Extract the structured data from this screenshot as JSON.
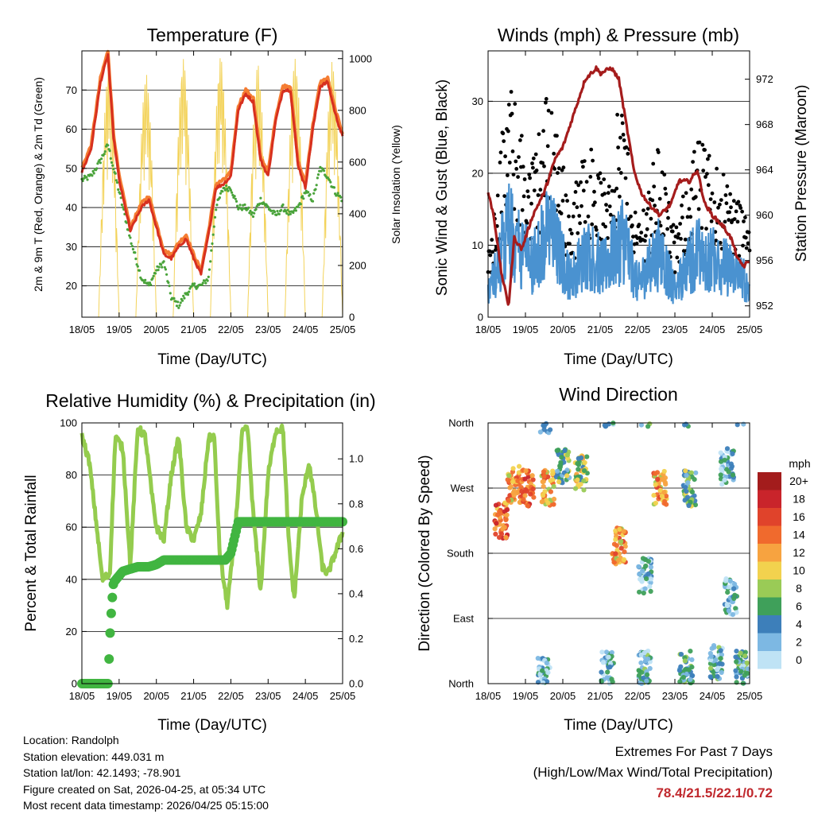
{
  "chart_data": [
    {
      "type": "line",
      "title": "Temperature (F)",
      "xlabel": "Time (Day/UTC)",
      "ylabel_left": "2m & 9m T (Red, Orange) & 2m Td (Green)",
      "ylabel_right": "Solar Insolation (Yellow)",
      "x_ticks": [
        "18/05",
        "19/05",
        "20/05",
        "21/05",
        "22/05",
        "23/05",
        "24/05",
        "25/05"
      ],
      "ylim": [
        12,
        80
      ],
      "y_ticks": [
        20,
        30,
        40,
        50,
        60,
        70
      ],
      "y2lim": [
        0,
        1030
      ],
      "y2_ticks": [
        0,
        200,
        400,
        600,
        800,
        1000
      ],
      "x_days": [
        0,
        0.25,
        0.5,
        0.7,
        0.85,
        1.0,
        1.3,
        1.6,
        1.8,
        2.0,
        2.2,
        2.4,
        2.6,
        2.8,
        3.0,
        3.2,
        3.4,
        3.6,
        3.8,
        4.0,
        4.2,
        4.4,
        4.6,
        4.8,
        5.0,
        5.2,
        5.4,
        5.6,
        5.8,
        6.0,
        6.2,
        6.4,
        6.6,
        6.8,
        7.0
      ],
      "series": [
        {
          "name": "2m T",
          "color": "#d7301f",
          "values": [
            49,
            55,
            72,
            79,
            58,
            47,
            34,
            40,
            42,
            35,
            28,
            27,
            30,
            32,
            27,
            23,
            33,
            45,
            46,
            48,
            65,
            69,
            67,
            52,
            48,
            62,
            70,
            70,
            51,
            45,
            60,
            71,
            72,
            64,
            58
          ]
        },
        {
          "name": "9m T",
          "color": "#f57d33",
          "values": [
            50,
            56,
            73,
            80,
            59,
            48,
            35,
            41,
            43,
            36,
            29,
            28,
            31,
            33,
            28,
            24,
            34,
            46,
            47,
            49,
            66,
            70,
            68,
            53,
            49,
            63,
            71,
            71,
            52,
            46,
            61,
            72,
            73,
            65,
            59
          ]
        },
        {
          "name": "2m Td",
          "color": "#49a33a",
          "values": [
            47,
            48,
            52,
            56,
            50,
            44,
            32,
            22,
            20,
            24,
            26,
            17,
            15,
            18,
            20,
            20,
            22,
            40,
            45,
            45,
            40,
            40,
            38,
            42,
            40,
            38,
            40,
            38,
            40,
            44,
            42,
            50,
            48,
            44,
            42
          ]
        }
      ],
      "solar_peaks": [
        980,
        940,
        1000,
        1010,
        980,
        1000,
        990
      ],
      "solar_color": "#f3d35b"
    },
    {
      "type": "scatter",
      "title": "Winds (mph) & Pressure (mb)",
      "xlabel": "Time (Day/UTC)",
      "ylabel_left": "Sonic Wind & Gust (Blue, Black)",
      "ylabel_right": "Station Pressure (Maroon)",
      "x_ticks": [
        "18/05",
        "19/05",
        "20/05",
        "21/05",
        "22/05",
        "23/05",
        "24/05",
        "25/05"
      ],
      "ylim": [
        0,
        37
      ],
      "y_ticks": [
        0,
        10,
        20,
        30
      ],
      "y2lim": [
        951,
        974.5
      ],
      "y2_ticks": [
        952,
        956,
        960,
        964,
        968,
        972
      ],
      "x_days": [
        0,
        0.15,
        0.35,
        0.55,
        0.7,
        0.9,
        1.2,
        1.5,
        1.8,
        2.0,
        2.3,
        2.6,
        2.9,
        3.0,
        3.3,
        3.5,
        3.7,
        3.9,
        4.1,
        4.3,
        4.6,
        4.9,
        5.1,
        5.4,
        5.6,
        5.8,
        6.0,
        6.3,
        6.5,
        6.7,
        6.85,
        7.0
      ],
      "pressure": [
        962,
        960,
        955,
        952,
        958,
        957,
        960,
        962,
        965,
        966,
        969,
        972,
        973,
        972.5,
        973,
        972,
        968,
        964,
        962,
        961,
        960,
        961,
        963,
        963,
        964,
        961,
        960,
        959,
        958,
        956,
        955.5,
        956
      ],
      "wind_peaks": [
        10,
        22,
        19,
        23,
        13,
        17,
        21,
        17,
        20,
        15,
        13
      ],
      "gust_max": 35,
      "pressure_color": "#a51c1c",
      "wind_color": "#4a92d0",
      "gust_color": "#000000"
    },
    {
      "type": "line",
      "title": "Relative Humidity (%) & Precipitation (in)",
      "xlabel": "Time (Day/UTC)",
      "ylabel_left": "Percent & Total Rainfall",
      "x_ticks": [
        "18/05",
        "19/05",
        "20/05",
        "21/05",
        "22/05",
        "23/05",
        "24/05",
        "25/05"
      ],
      "ylim": [
        0,
        100
      ],
      "y_ticks": [
        0,
        20,
        40,
        60,
        80,
        100
      ],
      "y2lim": [
        0,
        1.16
      ],
      "y2_ticks": [
        0.0,
        0.2,
        0.4,
        0.6,
        0.8,
        1.0
      ],
      "series": [
        {
          "name": "Relative Humidity",
          "color": "#94cc4e",
          "x_days": [
            0,
            0.2,
            0.4,
            0.55,
            0.75,
            0.9,
            1.1,
            1.3,
            1.5,
            1.7,
            1.9,
            2.0,
            2.2,
            2.4,
            2.6,
            2.8,
            3.0,
            3.2,
            3.4,
            3.55,
            3.7,
            3.9,
            4.1,
            4.3,
            4.45,
            4.6,
            4.8,
            5.0,
            5.2,
            5.4,
            5.55,
            5.7,
            5.9,
            6.1,
            6.3,
            6.45,
            6.6,
            6.8,
            7.0
          ],
          "values": [
            95,
            85,
            60,
            40,
            42,
            95,
            90,
            45,
            98,
            95,
            70,
            60,
            55,
            80,
            95,
            60,
            55,
            65,
            94,
            95,
            50,
            30,
            55,
            96,
            98,
            65,
            35,
            80,
            97,
            98,
            55,
            32,
            70,
            85,
            65,
            45,
            42,
            50,
            58
          ]
        },
        {
          "name": "Total Rainfall",
          "color": "#41b541",
          "x_days": [
            0,
            0.7,
            0.72,
            0.75,
            0.8,
            0.85,
            1.0,
            1.1,
            1.3,
            1.5,
            1.8,
            2.0,
            2.2,
            2.5,
            3.0,
            3.5,
            3.85,
            4.0,
            4.1,
            4.2,
            5.0,
            6.0,
            7.0
          ],
          "values": [
            0.0,
            0.0,
            0.07,
            0.2,
            0.35,
            0.45,
            0.48,
            0.5,
            0.51,
            0.52,
            0.52,
            0.53,
            0.55,
            0.55,
            0.55,
            0.55,
            0.55,
            0.58,
            0.65,
            0.72,
            0.72,
            0.72,
            0.72
          ]
        }
      ]
    },
    {
      "type": "scatter",
      "title": "Wind Direction",
      "xlabel": "Time (Day/UTC)",
      "ylabel_left": "Direction (Colored By Speed)",
      "x_ticks": [
        "18/05",
        "19/05",
        "20/05",
        "21/05",
        "22/05",
        "23/05",
        "24/05",
        "25/05"
      ],
      "y_ticks": [
        "North",
        "East",
        "South",
        "West",
        "North"
      ],
      "ylim": [
        0,
        360
      ],
      "colorbar_title": "mph",
      "colorbar_labels": [
        "20+",
        "18",
        "16",
        "14",
        "12",
        "10",
        "8",
        "6",
        "4",
        "2",
        "0"
      ],
      "colorbar_colors": [
        "#a31c1c",
        "#c9242b",
        "#e0432b",
        "#f06a2d",
        "#f7a340",
        "#f2d24e",
        "#9acb56",
        "#3fa05a",
        "#3d7fba",
        "#7db8e3",
        "#bfe3f5"
      ],
      "clusters": [
        {
          "x_days": 0.35,
          "dir": 225,
          "speed": 14
        },
        {
          "x_days": 0.7,
          "dir": 275,
          "speed": 12
        },
        {
          "x_days": 1.05,
          "dir": 270,
          "speed": 14
        },
        {
          "x_days": 1.6,
          "dir": 270,
          "speed": 12
        },
        {
          "x_days": 2.0,
          "dir": 300,
          "speed": 6
        },
        {
          "x_days": 2.5,
          "dir": 290,
          "speed": 8
        },
        {
          "x_days": 3.5,
          "dir": 190,
          "speed": 12
        },
        {
          "x_days": 4.6,
          "dir": 270,
          "speed": 12
        },
        {
          "x_days": 5.4,
          "dir": 270,
          "speed": 6
        },
        {
          "x_days": 6.4,
          "dir": 300,
          "speed": 3
        },
        {
          "x_days": 3.2,
          "dir": 20,
          "speed": 3
        },
        {
          "x_days": 4.2,
          "dir": 20,
          "speed": 4
        },
        {
          "x_days": 5.3,
          "dir": 20,
          "speed": 5
        },
        {
          "x_days": 6.1,
          "dir": 30,
          "speed": 4
        },
        {
          "x_days": 6.8,
          "dir": 20,
          "speed": 4
        },
        {
          "x_days": 6.5,
          "dir": 120,
          "speed": 3
        },
        {
          "x_days": 4.2,
          "dir": 150,
          "speed": 3
        },
        {
          "x_days": 1.5,
          "dir": 10,
          "speed": 3
        }
      ]
    }
  ],
  "info": {
    "location": "Location: Randolph",
    "elevation": "Station elevation: 449.031 m",
    "latlon": "Station lat/lon: 42.1493; -78.901",
    "created": "Figure created on Sat, 2026-04-25, at 05:34 UTC",
    "recent": "Most recent data timestamp: 2026/04/25 05:15:00"
  },
  "extremes": {
    "title": "Extremes For Past 7 Days",
    "subtitle": "(High/Low/Max Wind/Total Precipitation)",
    "values": "78.4/21.5/22.1/0.72",
    "color": "#c0282d"
  }
}
